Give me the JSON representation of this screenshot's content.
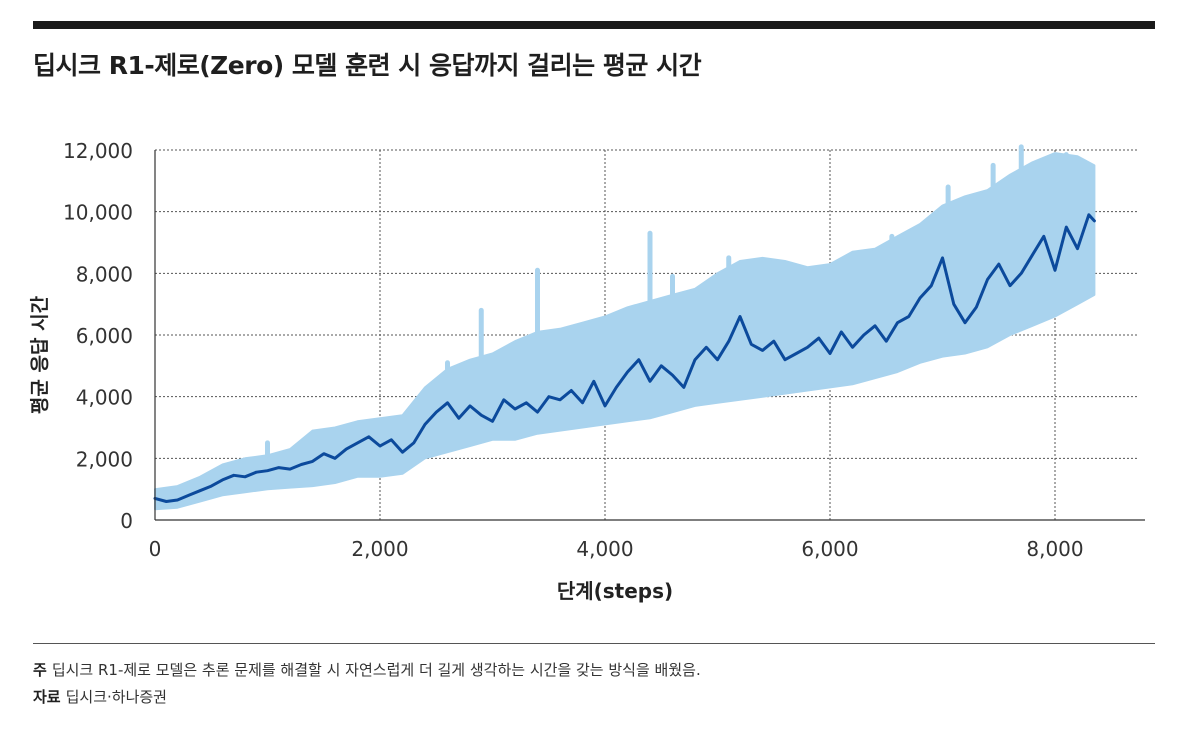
{
  "title": "딥시크 R1-제로(Zero) 모델 훈련 시 응답까지 걸리는 평균 시간",
  "footer": {
    "note_label": "주",
    "note_text": "딥시크 R1-제로 모델은 추론 문제를 해결할 시 자연스럽게 더 길게 생각하는 시간을 갖는 방식을 배웠음.",
    "source_label": "자료",
    "source_text": "딥시크·하나증권"
  },
  "chart_data": {
    "type": "line",
    "title": "딥시크 R1-제로(Zero) 모델 훈련 시 응답까지 걸리는 평균 시간",
    "xlabel": "단계(steps)",
    "ylabel": "평균 응답 시간",
    "xlim": [
      0,
      8800
    ],
    "ylim": [
      0,
      12000
    ],
    "xticks": [
      0,
      2000,
      4000,
      6000,
      8000
    ],
    "xtick_labels": [
      "0",
      "2,000",
      "4,000",
      "6,000",
      "8,000"
    ],
    "yticks": [
      0,
      2000,
      4000,
      6000,
      8000,
      10000,
      12000
    ],
    "ytick_labels": [
      "0",
      "2,000",
      "4,000",
      "6,000",
      "8,000",
      "10,000",
      "12,000"
    ],
    "grid": true,
    "colors": {
      "band": "#a9d3ee",
      "line": "#0c4a9c",
      "grid": "#555555",
      "axis": "#333333"
    },
    "band_x": [
      0,
      200,
      400,
      600,
      800,
      1000,
      1200,
      1400,
      1600,
      1800,
      2000,
      2200,
      2400,
      2600,
      2800,
      3000,
      3200,
      3400,
      3600,
      3800,
      4000,
      4200,
      4400,
      4600,
      4800,
      5000,
      5200,
      5400,
      5600,
      5800,
      6000,
      6200,
      6400,
      6600,
      6800,
      7000,
      7200,
      7400,
      7600,
      7800,
      8000,
      8200,
      8350
    ],
    "band_low": [
      350,
      400,
      600,
      800,
      900,
      1000,
      1050,
      1100,
      1200,
      1400,
      1400,
      1500,
      2000,
      2200,
      2400,
      2600,
      2600,
      2800,
      2900,
      3000,
      3100,
      3200,
      3300,
      3500,
      3700,
      3800,
      3900,
      4000,
      4100,
      4200,
      4300,
      4400,
      4600,
      4800,
      5100,
      5300,
      5400,
      5600,
      6000,
      6300,
      6600,
      7000,
      7300
    ],
    "band_high": [
      1000,
      1100,
      1400,
      1800,
      2000,
      2100,
      2300,
      2900,
      3000,
      3200,
      3300,
      3400,
      4300,
      4900,
      5200,
      5400,
      5800,
      6100,
      6200,
      6400,
      6600,
      6900,
      7100,
      7300,
      7500,
      8000,
      8400,
      8500,
      8400,
      8200,
      8300,
      8700,
      8800,
      9200,
      9600,
      10200,
      10500,
      10700,
      11200,
      11600,
      11900,
      11800,
      11500
    ],
    "band_spikes": [
      {
        "x": 1000,
        "y": 2500
      },
      {
        "x": 2600,
        "y": 5100
      },
      {
        "x": 2900,
        "y": 6800
      },
      {
        "x": 3400,
        "y": 8100
      },
      {
        "x": 4400,
        "y": 9300
      },
      {
        "x": 4600,
        "y": 7900
      },
      {
        "x": 5100,
        "y": 8500
      },
      {
        "x": 6550,
        "y": 9200
      },
      {
        "x": 7050,
        "y": 10800
      },
      {
        "x": 7450,
        "y": 11500
      },
      {
        "x": 7700,
        "y": 12100
      },
      {
        "x": 8100,
        "y": 11800
      }
    ],
    "series": [
      {
        "x": [
          0,
          100,
          200,
          300,
          400,
          500,
          600,
          700,
          800,
          900,
          1000,
          1100,
          1200,
          1300,
          1400,
          1500,
          1600,
          1700,
          1800,
          1900,
          2000,
          2100,
          2200,
          2300,
          2400,
          2500,
          2600,
          2700,
          2800,
          2900,
          3000,
          3100,
          3200,
          3300,
          3400,
          3500,
          3600,
          3700,
          3800,
          3900,
          4000,
          4100,
          4200,
          4300,
          4400,
          4500,
          4600,
          4700,
          4800,
          4900,
          5000,
          5100,
          5200,
          5300,
          5400,
          5500,
          5600,
          5700,
          5800,
          5900,
          6000,
          6100,
          6200,
          6300,
          6400,
          6500,
          6600,
          6700,
          6800,
          6900,
          7000,
          7100,
          7200,
          7300,
          7400,
          7500,
          7600,
          7700,
          7800,
          7900,
          8000,
          8100,
          8200,
          8300,
          8350
        ],
        "y": [
          700,
          600,
          650,
          800,
          950,
          1100,
          1300,
          1450,
          1400,
          1550,
          1600,
          1700,
          1650,
          1800,
          1900,
          2150,
          2000,
          2300,
          2500,
          2700,
          2400,
          2600,
          2200,
          2500,
          3100,
          3500,
          3800,
          3300,
          3700,
          3400,
          3200,
          3900,
          3600,
          3800,
          3500,
          4000,
          3900,
          4200,
          3800,
          4500,
          3700,
          4300,
          4800,
          5200,
          4500,
          5000,
          4700,
          4300,
          5200,
          5600,
          5200,
          5800,
          6600,
          5700,
          5500,
          5800,
          5200,
          5400,
          5600,
          5900,
          5400,
          6100,
          5600,
          6000,
          6300,
          5800,
          6400,
          6600,
          7200,
          7600,
          8500,
          7000,
          6400,
          6900,
          7800,
          8300,
          7600,
          8000,
          8600,
          9200,
          8100,
          9500,
          8800,
          9900,
          9700
        ]
      }
    ]
  }
}
